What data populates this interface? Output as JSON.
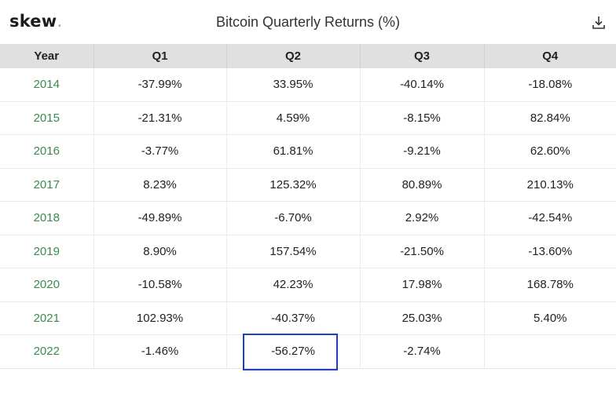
{
  "header": {
    "logo_text": "skew",
    "logo_dot": ".",
    "title": "Bitcoin Quarterly Returns (%)",
    "download_icon": "download-icon"
  },
  "colors": {
    "year_text": "#3b8a4f",
    "header_bg": "#e0e0e0",
    "highlight_border": "#1e3fbf"
  },
  "chart_data": {
    "type": "table",
    "title": "Bitcoin Quarterly Returns (%)",
    "columns": [
      "Year",
      "Q1",
      "Q2",
      "Q3",
      "Q4"
    ],
    "rows": [
      {
        "year": "2014",
        "q1": "-37.99%",
        "q2": "33.95%",
        "q3": "-40.14%",
        "q4": "-18.08%"
      },
      {
        "year": "2015",
        "q1": "-21.31%",
        "q2": "4.59%",
        "q3": "-8.15%",
        "q4": "82.84%"
      },
      {
        "year": "2016",
        "q1": "-3.77%",
        "q2": "61.81%",
        "q3": "-9.21%",
        "q4": "62.60%"
      },
      {
        "year": "2017",
        "q1": "8.23%",
        "q2": "125.32%",
        "q3": "80.89%",
        "q4": "210.13%"
      },
      {
        "year": "2018",
        "q1": "-49.89%",
        "q2": "-6.70%",
        "q3": "2.92%",
        "q4": "-42.54%"
      },
      {
        "year": "2019",
        "q1": "8.90%",
        "q2": "157.54%",
        "q3": "-21.50%",
        "q4": "-13.60%"
      },
      {
        "year": "2020",
        "q1": "-10.58%",
        "q2": "42.23%",
        "q3": "17.98%",
        "q4": "168.78%"
      },
      {
        "year": "2021",
        "q1": "102.93%",
        "q2": "-40.37%",
        "q3": "25.03%",
        "q4": "5.40%"
      },
      {
        "year": "2022",
        "q1": "-1.46%",
        "q2": "-56.27%",
        "q3": "-2.74%",
        "q4": ""
      }
    ],
    "highlighted_cell": {
      "year": "2022",
      "quarter": "Q2"
    }
  }
}
